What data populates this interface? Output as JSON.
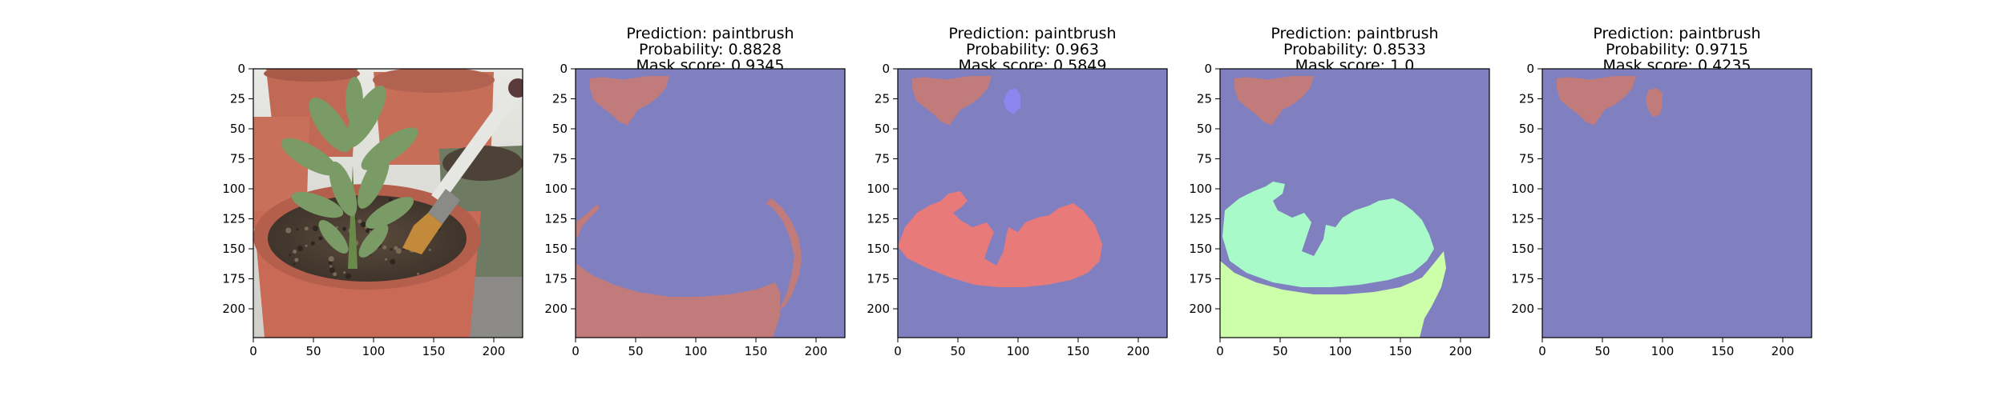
{
  "chart_data": [
    {
      "type": "image",
      "titles": [],
      "content": "photo",
      "xlim": [
        0,
        224
      ],
      "ylim": [
        224,
        0
      ],
      "xticks": [
        0,
        50,
        100,
        150,
        200
      ],
      "yticks": [
        0,
        25,
        50,
        75,
        100,
        125,
        150,
        175,
        200
      ]
    },
    {
      "type": "image",
      "titles": [
        "Prediction: paintbrush",
        "Probability: 0.8828",
        "Mask score: 0.9345"
      ],
      "content": "mask",
      "mask_colors": [
        "#c27b7b"
      ],
      "xlim": [
        0,
        224
      ],
      "ylim": [
        224,
        0
      ],
      "xticks": [
        0,
        50,
        100,
        150,
        200
      ],
      "yticks": [
        0,
        25,
        50,
        75,
        100,
        125,
        150,
        175,
        200
      ]
    },
    {
      "type": "image",
      "titles": [
        "Prediction: paintbrush",
        "Probability: 0.963",
        "Mask score: 0.5849"
      ],
      "content": "mask",
      "mask_colors": [
        "#c27b7b",
        "#e87a7a",
        "#8b86f0"
      ],
      "xlim": [
        0,
        224
      ],
      "ylim": [
        224,
        0
      ],
      "xticks": [
        0,
        50,
        100,
        150,
        200
      ],
      "yticks": [
        0,
        25,
        50,
        75,
        100,
        125,
        150,
        175,
        200
      ]
    },
    {
      "type": "image",
      "titles": [
        "Prediction: paintbrush",
        "Probability: 0.8533",
        "Mask score: 1.0"
      ],
      "content": "mask",
      "mask_colors": [
        "#c27b7b",
        "#a8fbc9",
        "#cdfea9"
      ],
      "xlim": [
        0,
        224
      ],
      "ylim": [
        224,
        0
      ],
      "xticks": [
        0,
        50,
        100,
        150,
        200
      ],
      "yticks": [
        0,
        25,
        50,
        75,
        100,
        125,
        150,
        175,
        200
      ]
    },
    {
      "type": "image",
      "titles": [
        "Prediction: paintbrush",
        "Probability: 0.9715",
        "Mask score: 0.4235"
      ],
      "content": "mask",
      "mask_colors": [
        "#c27b7b"
      ],
      "xlim": [
        0,
        224
      ],
      "ylim": [
        224,
        0
      ],
      "xticks": [
        0,
        50,
        100,
        150,
        200
      ],
      "yticks": [
        0,
        25,
        50,
        75,
        100,
        125,
        150,
        175,
        200
      ]
    }
  ],
  "colors": {
    "background_mask": "#8080c0",
    "axis": "#000000"
  }
}
